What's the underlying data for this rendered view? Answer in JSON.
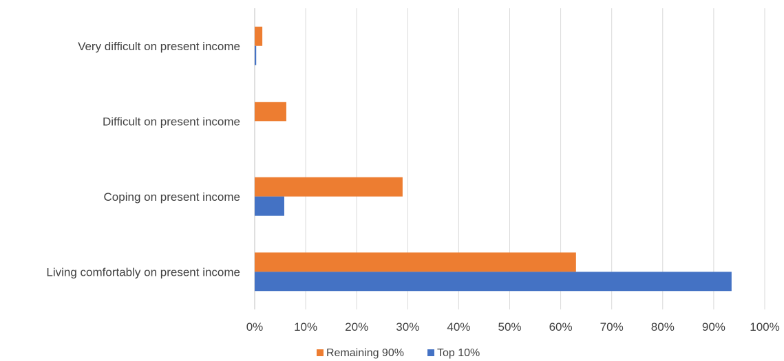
{
  "chart_data": {
    "type": "bar",
    "orientation": "horizontal",
    "categories": [
      "Very difficult on present income",
      "Difficult on present income",
      "Coping on present income",
      "Living comfortably on present income"
    ],
    "series": [
      {
        "name": "Remaining 90%",
        "color": "#ED7D31",
        "values": [
          1.5,
          6.2,
          29.0,
          63.0
        ]
      },
      {
        "name": "Top 10%",
        "color": "#4472C4",
        "values": [
          0.3,
          0.0,
          5.8,
          93.5
        ]
      }
    ],
    "xlim": [
      0,
      100
    ],
    "xticks": [
      "0%",
      "10%",
      "20%",
      "30%",
      "40%",
      "50%",
      "60%",
      "70%",
      "80%",
      "90%",
      "100%"
    ],
    "grid": true,
    "legend_position": "bottom",
    "title": "",
    "xlabel": "",
    "ylabel": ""
  }
}
